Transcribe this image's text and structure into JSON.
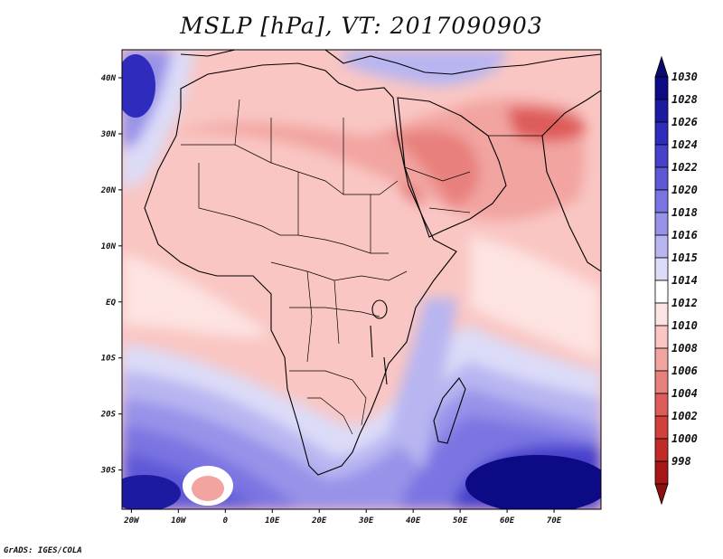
{
  "title": "MSLP [hPa], VT: 2017090903",
  "credit": "GrADS: IGES/COLA",
  "map": {
    "lon_range": [
      -22,
      80
    ],
    "lat_range": [
      -37,
      45
    ],
    "lon_ticks": [
      {
        "value": -20,
        "label": "20W"
      },
      {
        "value": -10,
        "label": "10W"
      },
      {
        "value": 0,
        "label": "0"
      },
      {
        "value": 10,
        "label": "10E"
      },
      {
        "value": 20,
        "label": "20E"
      },
      {
        "value": 30,
        "label": "30E"
      },
      {
        "value": 40,
        "label": "40E"
      },
      {
        "value": 50,
        "label": "50E"
      },
      {
        "value": 60,
        "label": "60E"
      },
      {
        "value": 70,
        "label": "70E"
      }
    ],
    "lat_ticks": [
      {
        "value": 40,
        "label": "40N"
      },
      {
        "value": 30,
        "label": "30N"
      },
      {
        "value": 20,
        "label": "20N"
      },
      {
        "value": 10,
        "label": "10N"
      },
      {
        "value": 0,
        "label": "EQ"
      },
      {
        "value": -10,
        "label": "10S"
      },
      {
        "value": -20,
        "label": "20S"
      },
      {
        "value": -30,
        "label": "30S"
      }
    ],
    "pressure_systems": [
      {
        "name": "south-atlantic-high",
        "lon": -14,
        "lat": -32,
        "value": 1028
      },
      {
        "name": "mascarene-high",
        "lon": 66,
        "lat": -32,
        "value": 1030
      },
      {
        "name": "azores-high",
        "lon": -20,
        "lat": 42,
        "value": 1024
      },
      {
        "name": "st-helena-low-cell",
        "lon": -3,
        "lat": -34,
        "value": 1008
      },
      {
        "name": "arabian-heat-low",
        "lon": 42,
        "lat": 18,
        "value": 1004
      },
      {
        "name": "pakistan-heat-low",
        "lon": 62,
        "lat": 30,
        "value": 1002
      }
    ]
  },
  "colorbar": {
    "levels": [
      {
        "label": "1030",
        "color": "#0d0a85"
      },
      {
        "label": "1028",
        "color": "#1d1aa2"
      },
      {
        "label": "1026",
        "color": "#2f2bbd"
      },
      {
        "label": "1024",
        "color": "#4640cc"
      },
      {
        "label": "1022",
        "color": "#5e58d8"
      },
      {
        "label": "1020",
        "color": "#7a74e2"
      },
      {
        "label": "1018",
        "color": "#9892e9"
      },
      {
        "label": "1016",
        "color": "#b8b5f1"
      },
      {
        "label": "1015",
        "color": "#dcdbf8"
      },
      {
        "label": "1014",
        "color": "#ffffff"
      },
      {
        "label": "1012",
        "color": "#fde3e1"
      },
      {
        "label": "1010",
        "color": "#f9c6c3"
      },
      {
        "label": "1008",
        "color": "#f2a4a1"
      },
      {
        "label": "1006",
        "color": "#e8807d"
      },
      {
        "label": "1004",
        "color": "#de5c5a"
      },
      {
        "label": "1002",
        "color": "#d2403d"
      },
      {
        "label": "1000",
        "color": "#c12a27"
      },
      {
        "label": "998",
        "color": "#a61616"
      }
    ],
    "top_color": "#0d0a6e",
    "bottom_color": "#8e0f0f"
  }
}
